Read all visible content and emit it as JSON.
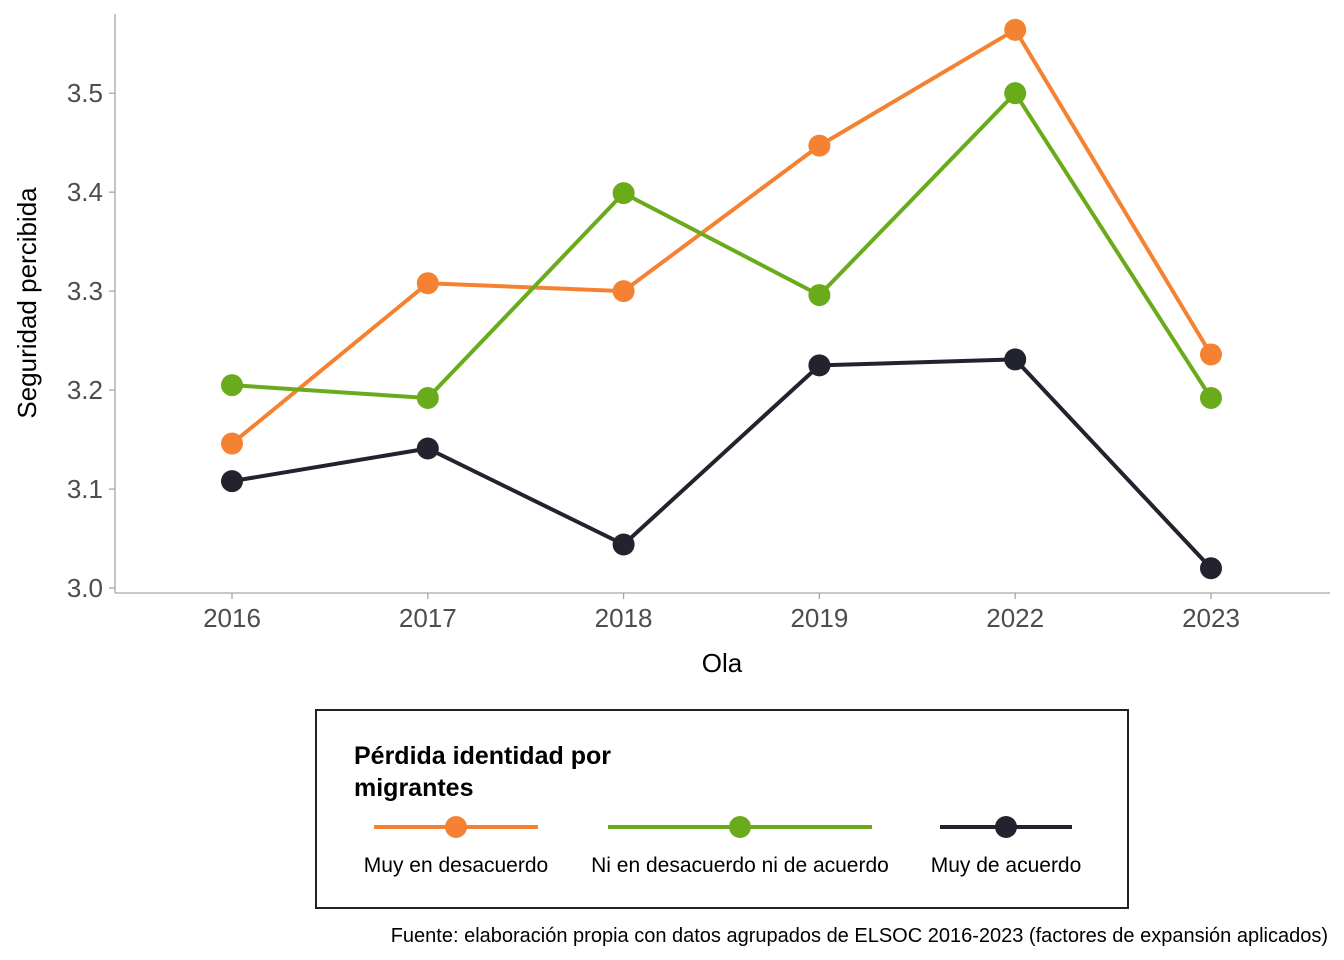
{
  "chart_data": {
    "type": "line",
    "x": [
      "2016",
      "2017",
      "2018",
      "2019",
      "2022",
      "2023"
    ],
    "xlabel": "Ola",
    "ylabel": "Seguridad percibida",
    "ylim": [
      2.995,
      3.58
    ],
    "yticks": [
      "3.0",
      "3.1",
      "3.2",
      "3.3",
      "3.4",
      "3.5"
    ],
    "grid": false,
    "legend": {
      "title_lines": [
        "Pérdida identidad por",
        "migrantes"
      ],
      "position": "bottom"
    },
    "series": [
      {
        "name": "Muy en desacuerdo",
        "color": "#f58233",
        "values": [
          3.146,
          3.308,
          3.3,
          3.447,
          3.564,
          3.236
        ]
      },
      {
        "name": "Ni en desacuerdo ni de acuerdo",
        "color": "#6aab1c",
        "values": [
          3.205,
          3.192,
          3.399,
          3.296,
          3.5,
          3.192
        ]
      },
      {
        "name": "Muy de acuerdo",
        "color": "#22232e",
        "values": [
          3.108,
          3.141,
          3.044,
          3.225,
          3.231,
          3.02
        ]
      }
    ],
    "caption": "Fuente: elaboración propia con datos agrupados de ELSOC 2016-2023 (factores de expansión aplicados)"
  }
}
